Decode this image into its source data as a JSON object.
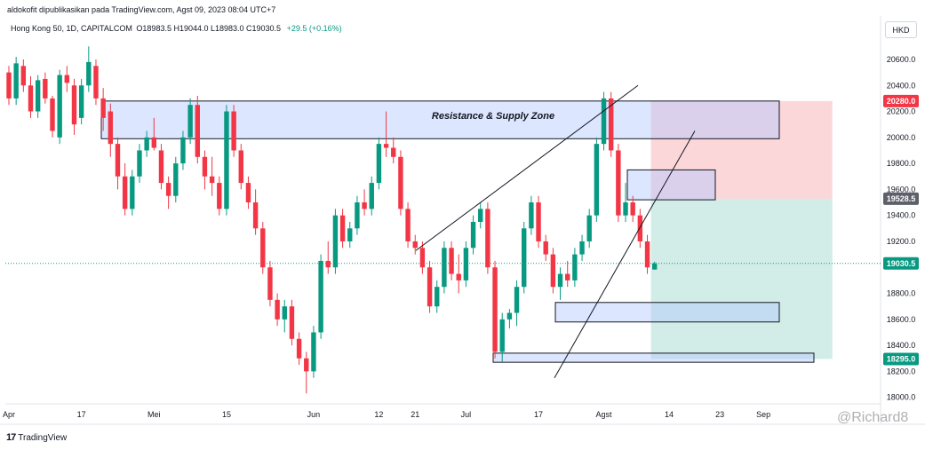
{
  "header": {
    "published": "aldokofit dipublikasikan pada TradingView.com, Agst 09, 2023 08:04 UTC+7",
    "symbol": "Hong Kong 50, 1D, CAPITALCOM",
    "ohlc": "O18983.5  H19044.0  L18983.0  C19030.5",
    "change": "+29.5 (+0.16%)",
    "currency": "HKD"
  },
  "footer": {
    "brand": "TradingView",
    "watermark": "@Richard8"
  },
  "chart_data": {
    "type": "candlestick",
    "y_axis": {
      "range": [
        17950,
        20750
      ],
      "ticks": [
        {
          "value": 20600,
          "label": "20600.0"
        },
        {
          "value": 20400,
          "label": "20400.0"
        },
        {
          "value": 20200,
          "label": "20200.0"
        },
        {
          "value": 20000,
          "label": "20000.0"
        },
        {
          "value": 19800,
          "label": "19800.0"
        },
        {
          "value": 19600,
          "label": "19600.0"
        },
        {
          "value": 19400,
          "label": "19400.0"
        },
        {
          "value": 19200,
          "label": "19200.0"
        },
        {
          "value": 18800,
          "label": "18800.0"
        },
        {
          "value": 18600,
          "label": "18600.0"
        },
        {
          "value": 18400,
          "label": "18400.0"
        },
        {
          "value": 18200,
          "label": "18200.0"
        },
        {
          "value": 18000,
          "label": "18000.0"
        }
      ]
    },
    "price_labels": [
      {
        "value": 20280,
        "label": "20280.0",
        "color": "#f23645"
      },
      {
        "value": 19528.5,
        "label": "19528.5",
        "color": "#5d606b"
      },
      {
        "value": 19030.5,
        "label": "19030.5",
        "color": "#089981"
      },
      {
        "value": 18295,
        "label": "18295.0",
        "color": "#089981"
      }
    ],
    "x_ticks": [
      {
        "index": 0,
        "label": "Apr"
      },
      {
        "index": 10,
        "label": "17"
      },
      {
        "index": 20,
        "label": "Mei"
      },
      {
        "index": 30,
        "label": "15"
      },
      {
        "index": 42,
        "label": "Jun"
      },
      {
        "index": 51,
        "label": "12"
      },
      {
        "index": 56,
        "label": "21"
      },
      {
        "index": 63,
        "label": "Jul"
      },
      {
        "index": 73,
        "label": "17"
      },
      {
        "index": 82,
        "label": "Agst"
      },
      {
        "index": 91,
        "label": "14"
      },
      {
        "index": 98,
        "label": "23"
      },
      {
        "index": 104,
        "label": "Sep"
      }
    ],
    "candles": [
      [
        20500,
        20550,
        20250,
        20300
      ],
      [
        20300,
        20620,
        20250,
        20570
      ],
      [
        20550,
        20600,
        20350,
        20400
      ],
      [
        20400,
        20470,
        20150,
        20200
      ],
      [
        20200,
        20480,
        20150,
        20440
      ],
      [
        20450,
        20500,
        20260,
        20300
      ],
      [
        20300,
        20320,
        20000,
        20050
      ],
      [
        20000,
        20520,
        19950,
        20480
      ],
      [
        20480,
        20550,
        20350,
        20420
      ],
      [
        20400,
        20450,
        20020,
        20100
      ],
      [
        20150,
        20450,
        20100,
        20400
      ],
      [
        20400,
        20700,
        20350,
        20580
      ],
      [
        20550,
        20600,
        20250,
        20300
      ],
      [
        20300,
        20380,
        20050,
        20150
      ],
      [
        20200,
        20260,
        19850,
        19950
      ],
      [
        19950,
        20000,
        19600,
        19700
      ],
      [
        19700,
        19800,
        19400,
        19450
      ],
      [
        19450,
        19750,
        19400,
        19700
      ],
      [
        19700,
        19950,
        19650,
        19900
      ],
      [
        19900,
        20050,
        19850,
        20000
      ],
      [
        20000,
        20150,
        19900,
        19920
      ],
      [
        19900,
        19950,
        19600,
        19650
      ],
      [
        19650,
        19700,
        19450,
        19550
      ],
      [
        19550,
        19850,
        19500,
        19800
      ],
      [
        19800,
        20050,
        19750,
        20000
      ],
      [
        20000,
        20300,
        19950,
        20250
      ],
      [
        20250,
        20320,
        19800,
        19850
      ],
      [
        19850,
        19900,
        19600,
        19700
      ],
      [
        19700,
        19850,
        19550,
        19650
      ],
      [
        19650,
        19700,
        19400,
        19450
      ],
      [
        19450,
        20250,
        19400,
        20200
      ],
      [
        20200,
        20250,
        19850,
        19900
      ],
      [
        19900,
        19950,
        19600,
        19650
      ],
      [
        19650,
        19700,
        19450,
        19500
      ],
      [
        19500,
        19600,
        19250,
        19300
      ],
      [
        19300,
        19350,
        18950,
        19000
      ],
      [
        19000,
        19050,
        18700,
        18750
      ],
      [
        18750,
        18800,
        18550,
        18600
      ],
      [
        18600,
        18750,
        18500,
        18700
      ],
      [
        18700,
        18750,
        18400,
        18450
      ],
      [
        18450,
        18500,
        18250,
        18300
      ],
      [
        18300,
        18350,
        18030,
        18200
      ],
      [
        18200,
        18550,
        18150,
        18500
      ],
      [
        18500,
        19100,
        18450,
        19050
      ],
      [
        19050,
        19200,
        18950,
        19000
      ],
      [
        19000,
        19450,
        18950,
        19400
      ],
      [
        19400,
        19450,
        19150,
        19200
      ],
      [
        19200,
        19350,
        19150,
        19300
      ],
      [
        19300,
        19550,
        19250,
        19500
      ],
      [
        19500,
        19600,
        19400,
        19450
      ],
      [
        19450,
        19700,
        19400,
        19650
      ],
      [
        19650,
        20000,
        19600,
        19950
      ],
      [
        19950,
        20200,
        19850,
        19920
      ],
      [
        19920,
        20000,
        19800,
        19850
      ],
      [
        19850,
        19900,
        19400,
        19450
      ],
      [
        19450,
        19500,
        19150,
        19200
      ],
      [
        19200,
        19250,
        19100,
        19150
      ],
      [
        19150,
        19200,
        18950,
        19000
      ],
      [
        19000,
        19050,
        18650,
        18700
      ],
      [
        18700,
        18900,
        18650,
        18850
      ],
      [
        18850,
        19200,
        18800,
        19150
      ],
      [
        19150,
        19200,
        18900,
        18950
      ],
      [
        18950,
        19100,
        18800,
        18900
      ],
      [
        18900,
        19200,
        18850,
        19150
      ],
      [
        19150,
        19400,
        19100,
        19350
      ],
      [
        19350,
        19500,
        19300,
        19450
      ],
      [
        19450,
        19500,
        18950,
        19000
      ],
      [
        19000,
        19050,
        18300,
        18350
      ],
      [
        18350,
        18650,
        18270,
        18600
      ],
      [
        18600,
        18680,
        18530,
        18650
      ],
      [
        18650,
        18900,
        18550,
        18850
      ],
      [
        18850,
        19350,
        18800,
        19300
      ],
      [
        19300,
        19550,
        19250,
        19500
      ],
      [
        19500,
        19550,
        19150,
        19200
      ],
      [
        19200,
        19250,
        19050,
        19100
      ],
      [
        19100,
        19150,
        18800,
        18850
      ],
      [
        18850,
        19000,
        18750,
        18950
      ],
      [
        18950,
        19050,
        18850,
        18900
      ],
      [
        18900,
        19150,
        18850,
        19100
      ],
      [
        19100,
        19250,
        19050,
        19200
      ],
      [
        19200,
        19450,
        19150,
        19400
      ],
      [
        19400,
        20000,
        19350,
        19950
      ],
      [
        19950,
        20350,
        19900,
        20300
      ],
      [
        20300,
        20350,
        19850,
        19900
      ],
      [
        19900,
        19950,
        19350,
        19400
      ],
      [
        19400,
        19650,
        19350,
        19500
      ],
      [
        19500,
        19550,
        19350,
        19400
      ],
      [
        19400,
        19450,
        19150,
        19200
      ],
      [
        19200,
        19250,
        18950,
        19000
      ],
      [
        18983.5,
        19044,
        18983,
        19030.5
      ]
    ],
    "bull_color": "#089981",
    "bear_color": "#f23645",
    "annotations": {
      "zone_label": "Resistance & Supply Zone"
    }
  }
}
